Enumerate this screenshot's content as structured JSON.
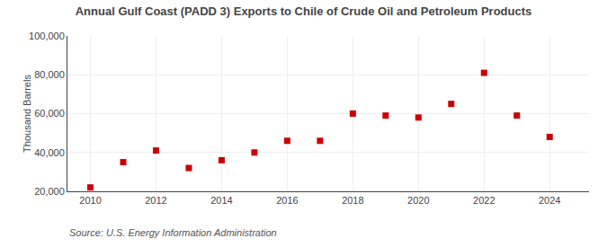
{
  "chart_data": {
    "type": "scatter",
    "title": "Annual Gulf Coast (PADD 3) Exports to Chile of Crude Oil and Petroleum Products",
    "y_label": "Thousand Barrels",
    "annotations": [
      "Source: U.S. Energy Information Administration"
    ],
    "x": [
      2010,
      2011,
      2012,
      2013,
      2014,
      2015,
      2016,
      2017,
      2018,
      2019,
      2020,
      2021,
      2022,
      2023,
      2024
    ],
    "values": [
      22000,
      35000,
      41000,
      32000,
      36000,
      40000,
      46000,
      46000,
      60000,
      59000,
      58000,
      65000,
      81000,
      59000,
      48000
    ],
    "color": "#cc0000",
    "marker": "square",
    "xlim": [
      2009.3,
      2025.2
    ],
    "xticks": [
      2010,
      2012,
      2014,
      2016,
      2018,
      2020,
      2022,
      2024
    ],
    "ylim": [
      20000,
      100000
    ],
    "yticks": [
      {
        "value": 20000,
        "label": "20,000"
      },
      {
        "value": 40000,
        "label": "40,000"
      },
      {
        "value": 60000,
        "label": "60,000"
      },
      {
        "value": 80000,
        "label": "80,000"
      },
      {
        "value": 100000,
        "label": "100,000"
      }
    ],
    "grid": true
  }
}
